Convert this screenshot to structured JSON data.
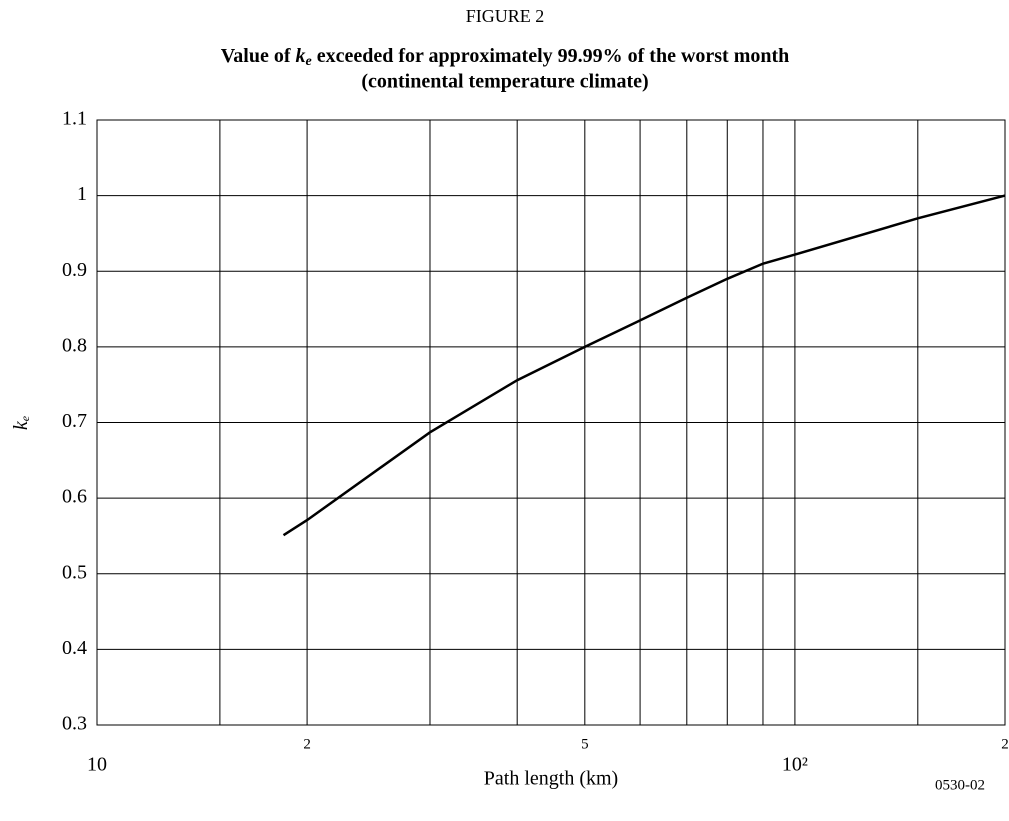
{
  "chart_data": {
    "type": "line",
    "figure_label": "FIGURE 2",
    "title_prefix": "Value of",
    "title_symbol": "k",
    "title_subscript": "e",
    "title_suffix": "exceeded for approximately 99.99% of the worst month",
    "subtitle": "(continental temperature climate)",
    "ylabel": "k",
    "ylabel_subscript": "e",
    "xlabel": "Path length (km)",
    "note": "0530-02",
    "xscale": "log",
    "grid": true,
    "xlim": [
      10,
      200
    ],
    "ylim": [
      0.3,
      1.1
    ],
    "xticks": [
      {
        "value": 10,
        "label": "10"
      },
      {
        "value": 20,
        "label": "2"
      },
      {
        "value": 50,
        "label": "5"
      },
      {
        "value": 100,
        "label": "10²"
      },
      {
        "value": 200,
        "label": "2"
      }
    ],
    "xgrid": [
      15,
      30,
      40,
      60,
      70,
      80,
      90,
      150
    ],
    "yticks": [
      0.3,
      0.4,
      0.5,
      0.6,
      0.7,
      0.8,
      0.9,
      1,
      1.1
    ],
    "series": [
      {
        "color": "#000000",
        "x": [
          18.5,
          20,
          30,
          40,
          50,
          60,
          70,
          80,
          90,
          100,
          150,
          200
        ],
        "values": [
          0.551,
          0.571,
          0.687,
          0.756,
          0.8,
          0.835,
          0.865,
          0.89,
          0.91,
          0.922,
          0.97,
          1.0
        ]
      }
    ]
  }
}
